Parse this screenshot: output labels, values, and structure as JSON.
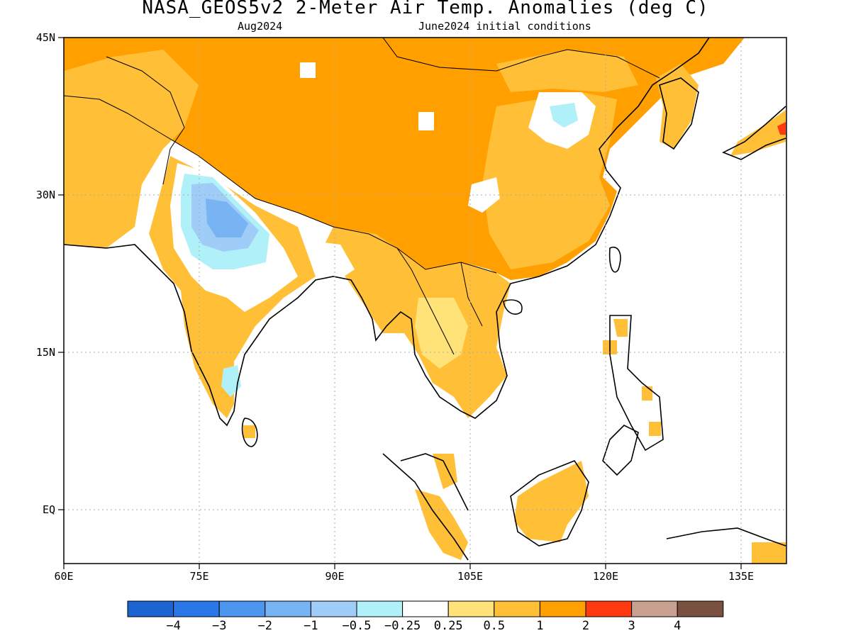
{
  "header": {
    "title": "NASA_GEOS5v2 2-Meter Air Temp. Anomalies (deg C)",
    "left_subtitle": "Aug2024",
    "right_subtitle": "June2024 initial conditions"
  },
  "map": {
    "lon_range": [
      60,
      140
    ],
    "lat_range": [
      -6,
      45
    ],
    "x_ticks": [
      "60E",
      "75E",
      "90E",
      "105E",
      "120E",
      "135E"
    ],
    "y_ticks": [
      "45N",
      "30N",
      "15N",
      "EQ"
    ],
    "grid": "dotted"
  },
  "colorbar": {
    "labels": [
      "-4",
      "-3",
      "-2",
      "-1",
      "-0.5",
      "-0.25",
      "0.25",
      "0.5",
      "1",
      "2",
      "3",
      "4"
    ],
    "colors": [
      "#1c64d0",
      "#2a78e8",
      "#4d96f0",
      "#78b4f4",
      "#a0ccf8",
      "#b0f0f8",
      "#ffffff",
      "#ffe278",
      "#ffc038",
      "#ffa000",
      "#ff3a10",
      "#c8a090",
      "#7a5040"
    ]
  }
}
